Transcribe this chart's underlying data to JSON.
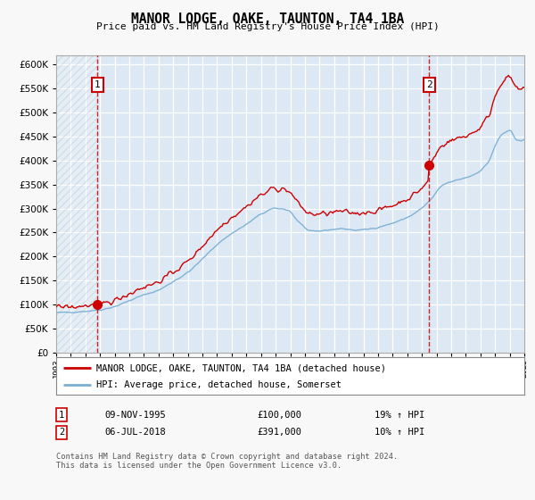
{
  "title": "MANOR LODGE, OAKE, TAUNTON, TA4 1BA",
  "subtitle": "Price paid vs. HM Land Registry's House Price Index (HPI)",
  "background_color": "#f8f8f8",
  "plot_bg_color": "#dce9f5",
  "grid_color": "#ffffff",
  "hpi_color": "#7bafd4",
  "price_color": "#cc0000",
  "sale1_idx": 34,
  "sale1_price": 100000,
  "sale2_idx": 306,
  "sale2_price": 391000,
  "ylim": [
    0,
    620000
  ],
  "ytick_step": 50000,
  "legend_line1": "MANOR LODGE, OAKE, TAUNTON, TA4 1BA (detached house)",
  "legend_line2": "HPI: Average price, detached house, Somerset",
  "table_row1_num": "1",
  "table_row1_date": "09-NOV-1995",
  "table_row1_price": "£100,000",
  "table_row1_hpi": "19% ↑ HPI",
  "table_row2_num": "2",
  "table_row2_date": "06-JUL-2018",
  "table_row2_price": "£391,000",
  "table_row2_hpi": "10% ↑ HPI",
  "footnote": "Contains HM Land Registry data © Crown copyright and database right 2024.\nThis data is licensed under the Open Government Licence v3.0."
}
